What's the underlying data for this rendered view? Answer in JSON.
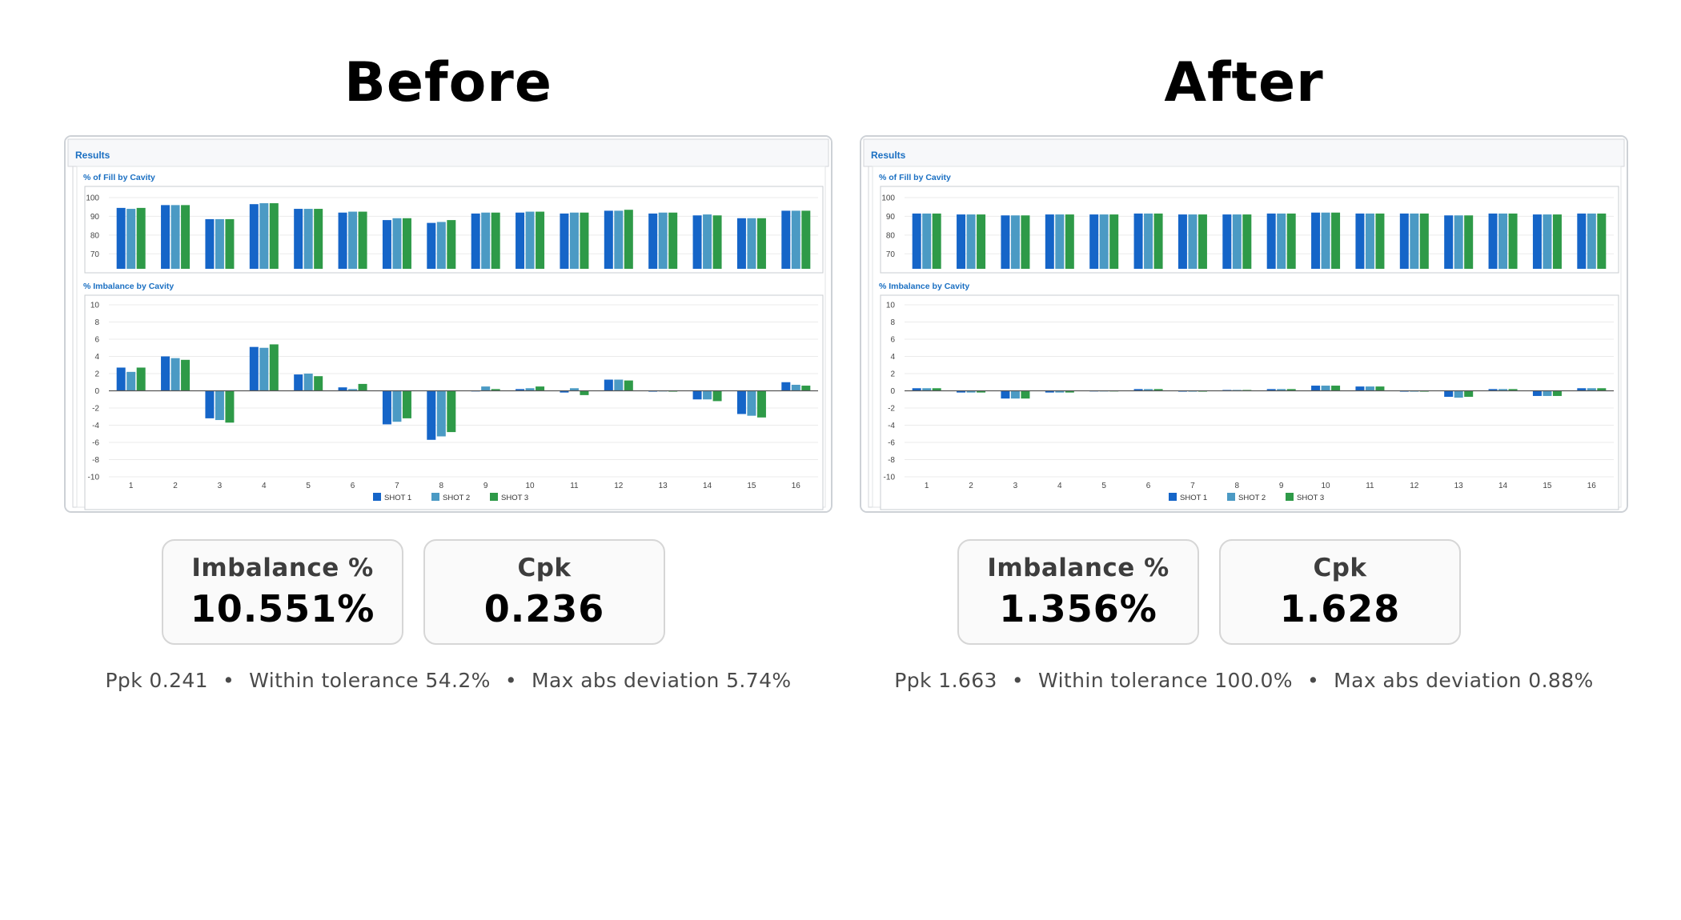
{
  "panels": [
    {
      "title": "Before",
      "screenshot": {
        "header": "Results",
        "fill_title": "% of Fill by Cavity",
        "imbalance_title": "% Imbalance by Cavity",
        "legend": [
          "SHOT 1",
          "SHOT 2",
          "SHOT 3"
        ]
      },
      "metrics": {
        "imbalance_label": "Imbalance %",
        "imbalance_value": "10.551%",
        "cpk_label": "Cpk",
        "cpk_value": "0.236"
      },
      "summary": {
        "ppk": "Ppk 0.241",
        "within": "Within tolerance 54.2%",
        "maxdev": "Max abs deviation 5.74%"
      }
    },
    {
      "title": "After",
      "screenshot": {
        "header": "Results",
        "fill_title": "% of Fill by Cavity",
        "imbalance_title": "% Imbalance by Cavity",
        "legend": [
          "SHOT 1",
          "SHOT 2",
          "SHOT 3"
        ]
      },
      "metrics": {
        "imbalance_label": "Imbalance %",
        "imbalance_value": "1.356%",
        "cpk_label": "Cpk",
        "cpk_value": "1.628"
      },
      "summary": {
        "ppk": "Ppk 1.663",
        "within": "Within tolerance 100.0%",
        "maxdev": "Max abs deviation 0.88%"
      }
    }
  ],
  "summary_separator": "•",
  "colors": {
    "shot1": "#1565c8",
    "shot2": "#4b9ac4",
    "shot3": "#2e9a48",
    "title_blue": "#1a6fc2"
  },
  "chart_data": [
    {
      "type": "bar",
      "panel": "Before",
      "title": "% of Fill by Cavity",
      "categories": [
        "1",
        "2",
        "3",
        "4",
        "5",
        "6",
        "7",
        "8",
        "9",
        "10",
        "11",
        "12",
        "13",
        "14",
        "15",
        "16"
      ],
      "ylim": [
        62,
        100
      ],
      "yticks": [
        100,
        90,
        80,
        70
      ],
      "series": [
        {
          "name": "SHOT 1",
          "values": [
            94.5,
            96,
            88.5,
            96.5,
            94,
            92,
            88,
            86.5,
            91.5,
            92,
            91.5,
            93,
            91.5,
            90.5,
            89,
            93
          ]
        },
        {
          "name": "SHOT 2",
          "values": [
            94,
            96,
            88.5,
            97,
            94,
            92.5,
            89,
            87,
            92,
            92.5,
            92,
            93,
            92,
            91,
            89,
            93
          ]
        },
        {
          "name": "SHOT 3",
          "values": [
            94.5,
            96,
            88.5,
            97,
            94,
            92.5,
            89,
            88,
            92,
            92.5,
            92,
            93.5,
            92,
            90.5,
            89,
            93
          ]
        }
      ]
    },
    {
      "type": "bar",
      "panel": "Before",
      "title": "% Imbalance by Cavity",
      "categories": [
        "1",
        "2",
        "3",
        "4",
        "5",
        "6",
        "7",
        "8",
        "9",
        "10",
        "11",
        "12",
        "13",
        "14",
        "15",
        "16"
      ],
      "ylim": [
        -10,
        10
      ],
      "yticks": [
        10,
        8,
        6,
        4,
        2,
        0,
        -2,
        -4,
        -6,
        -8,
        -10
      ],
      "series": [
        {
          "name": "SHOT 1",
          "values": [
            2.7,
            4.0,
            -3.2,
            5.1,
            1.9,
            0.4,
            -3.9,
            -5.7,
            0.0,
            0.2,
            -0.2,
            1.3,
            -0.1,
            -1.0,
            -2.7,
            1.0
          ]
        },
        {
          "name": "SHOT 2",
          "values": [
            2.2,
            3.8,
            -3.4,
            5.0,
            2.0,
            0.2,
            -3.6,
            -5.3,
            0.5,
            0.3,
            0.3,
            1.3,
            0.0,
            -1.0,
            -2.9,
            0.7
          ]
        },
        {
          "name": "SHOT 3",
          "values": [
            2.7,
            3.6,
            -3.7,
            5.4,
            1.7,
            0.8,
            -3.2,
            -4.8,
            0.2,
            0.5,
            -0.5,
            1.2,
            -0.1,
            -1.2,
            -3.1,
            0.6
          ]
        }
      ]
    },
    {
      "type": "bar",
      "panel": "After",
      "title": "% of Fill by Cavity",
      "categories": [
        "1",
        "2",
        "3",
        "4",
        "5",
        "6",
        "7",
        "8",
        "9",
        "10",
        "11",
        "12",
        "13",
        "14",
        "15",
        "16"
      ],
      "ylim": [
        62,
        100
      ],
      "yticks": [
        100,
        90,
        80,
        70
      ],
      "series": [
        {
          "name": "SHOT 1",
          "values": [
            91.5,
            91,
            90.5,
            91,
            91,
            91.5,
            91,
            91,
            91.5,
            92,
            91.5,
            91.5,
            90.5,
            91.5,
            91,
            91.5
          ]
        },
        {
          "name": "SHOT 2",
          "values": [
            91.5,
            91,
            90.5,
            91,
            91,
            91.5,
            91,
            91,
            91.5,
            92,
            91.5,
            91.5,
            90.5,
            91.5,
            91,
            91.5
          ]
        },
        {
          "name": "SHOT 3",
          "values": [
            91.5,
            91,
            90.5,
            91,
            91,
            91.5,
            91,
            91,
            91.5,
            92,
            91.5,
            91.5,
            90.5,
            91.5,
            91,
            91.5
          ]
        }
      ]
    },
    {
      "type": "bar",
      "panel": "After",
      "title": "% Imbalance by Cavity",
      "categories": [
        "1",
        "2",
        "3",
        "4",
        "5",
        "6",
        "7",
        "8",
        "9",
        "10",
        "11",
        "12",
        "13",
        "14",
        "15",
        "16"
      ],
      "ylim": [
        -10,
        10
      ],
      "yticks": [
        10,
        8,
        6,
        4,
        2,
        0,
        -2,
        -4,
        -6,
        -8,
        -10
      ],
      "series": [
        {
          "name": "SHOT 1",
          "values": [
            0.3,
            -0.2,
            -0.9,
            -0.2,
            0.0,
            0.2,
            -0.1,
            0.1,
            0.2,
            0.6,
            0.5,
            -0.1,
            -0.7,
            0.2,
            -0.6,
            0.3
          ]
        },
        {
          "name": "SHOT 2",
          "values": [
            0.3,
            -0.2,
            -0.9,
            -0.2,
            0.0,
            0.2,
            -0.1,
            0.1,
            0.2,
            0.6,
            0.5,
            -0.1,
            -0.8,
            0.2,
            -0.6,
            0.3
          ]
        },
        {
          "name": "SHOT 3",
          "values": [
            0.3,
            -0.2,
            -0.9,
            -0.2,
            0.0,
            0.2,
            -0.1,
            0.1,
            0.2,
            0.6,
            0.5,
            -0.1,
            -0.7,
            0.2,
            -0.6,
            0.3
          ]
        }
      ]
    }
  ]
}
